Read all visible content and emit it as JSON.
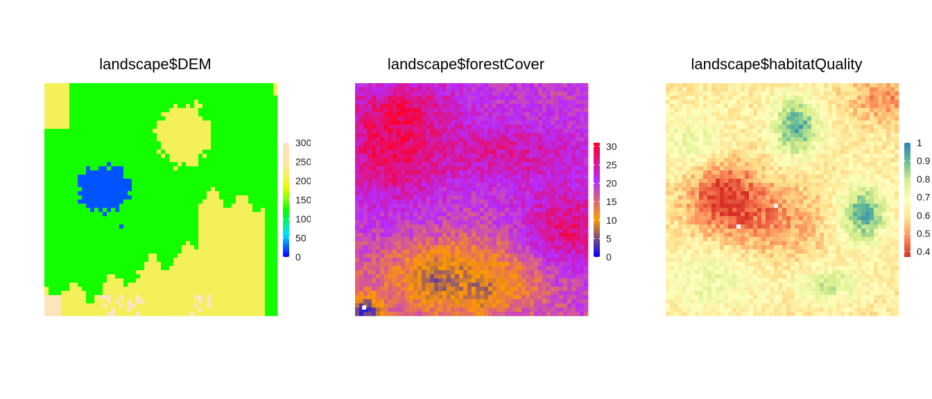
{
  "chart_data": [
    {
      "type": "heatmap",
      "title": "landscape$DEM",
      "legend_ticks": [
        "0",
        "50",
        "100",
        "150",
        "200",
        "250",
        "300"
      ],
      "legend_range": [
        0,
        300
      ],
      "legend_colors": [
        "#0000ff",
        "#00e4ff",
        "#00ff00",
        "#e3ff00",
        "#ffe699",
        "#fbe3c8"
      ],
      "grid": false,
      "legend_placement": "right"
    },
    {
      "type": "heatmap",
      "title": "landscape$forestCover",
      "legend_ticks": [
        "0",
        "5",
        "10",
        "15",
        "20",
        "25",
        "30"
      ],
      "legend_range": [
        0,
        31
      ],
      "legend_colors": [
        "#0000ff",
        "#ff9900",
        "#b62bff",
        "#ff0022"
      ],
      "grid": false,
      "legend_placement": "right"
    },
    {
      "type": "heatmap",
      "title": "landscape$habitatQuality",
      "legend_ticks": [
        "0.4",
        "0.5",
        "0.6",
        "0.7",
        "0.8",
        "0.9",
        "1"
      ],
      "legend_range": [
        0.37,
        1.0
      ],
      "legend_colors": [
        "#d73027",
        "#fc8d59",
        "#fee08b",
        "#ffffbf",
        "#d9ef8b",
        "#66bd93",
        "#2b83ba"
      ],
      "grid": false,
      "legend_placement": "right"
    }
  ]
}
